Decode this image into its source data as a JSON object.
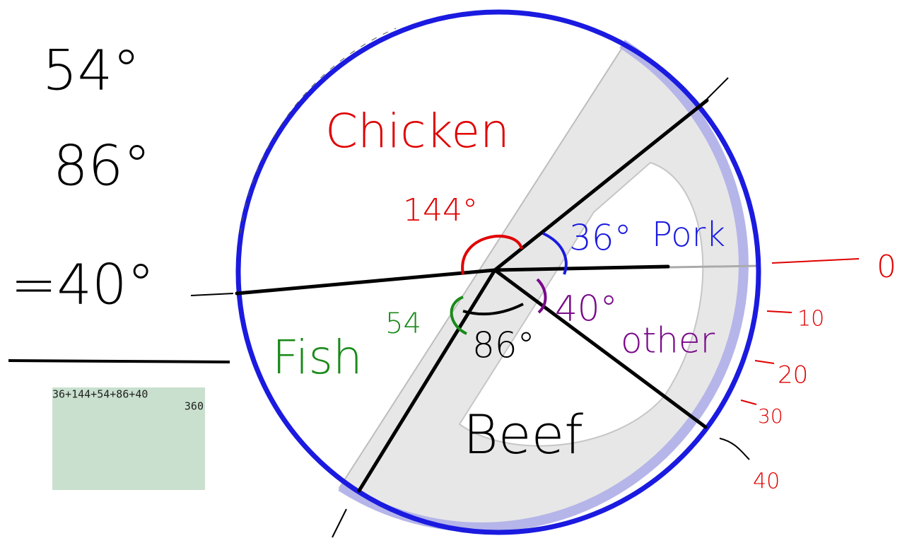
{
  "left_notes": {
    "line1": "54°",
    "line2": "86°",
    "line3": "=40°"
  },
  "calculator": {
    "expression": "36+144+54+86+40",
    "result": "360"
  },
  "pie": {
    "chicken": {
      "label": "Chicken",
      "angle": "144°"
    },
    "pork": {
      "label": "Pork",
      "angle": "36°"
    },
    "other": {
      "label": "other",
      "angle": "40°"
    },
    "beef": {
      "label": "Beef",
      "angle": "86°"
    },
    "fish": {
      "label": "Fish",
      "angle": "54"
    }
  },
  "right_scale": [
    "0",
    "10",
    "20",
    "30",
    "40"
  ]
}
